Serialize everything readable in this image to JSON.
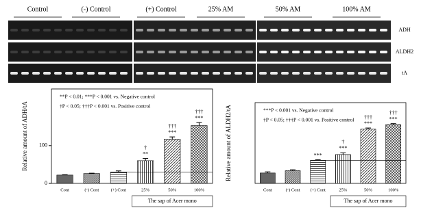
{
  "gel": {
    "lanes": [
      "Control",
      "(-) Control",
      "(+) Control",
      "25% AM",
      "50% AM",
      "100% AM"
    ],
    "rows": [
      "ADH",
      "ALDH2",
      "tA"
    ]
  },
  "chart_data": [
    {
      "type": "bar",
      "ylabel": "Relative amount of ADH/tA",
      "xlabel": "The sap of Acer mono",
      "notes": [
        "**P < 0.01; ***P < 0.001 vs. Negative control",
        "†P < 0.05; †††P < 0.001 vs. Positive control"
      ],
      "categories": [
        "Cont",
        "(-) Cont",
        "(+) Cont",
        "25%",
        "50%",
        "100%"
      ],
      "values": [
        22,
        26,
        30,
        60,
        117,
        153
      ],
      "errors": [
        1,
        1,
        3,
        6,
        6,
        8
      ],
      "stars": [
        null,
        null,
        null,
        "**",
        "***",
        "***"
      ],
      "daggers": [
        null,
        null,
        null,
        "†",
        "†††",
        "†††"
      ],
      "reference_line": 30,
      "ylim": [
        0,
        250
      ],
      "yticks": [
        0,
        100
      ]
    },
    {
      "type": "bar",
      "ylabel": "Relative amount of ALDH2/tA",
      "xlabel": "The sap of Acer mono",
      "notes": [
        "***P < 0.001 vs. Negative control",
        "†P < 0.05; †††P < 0.001 vs. Positive control"
      ],
      "categories": [
        "Cont",
        "(-) Cont",
        "(+) Cont",
        "25%",
        "50%",
        "100%"
      ],
      "values": [
        9,
        11,
        20,
        25,
        47,
        51
      ],
      "errors": [
        1,
        0.8,
        0.5,
        1.5,
        1,
        0.8
      ],
      "stars": [
        null,
        null,
        "***",
        "***",
        "***",
        "***"
      ],
      "daggers": [
        null,
        null,
        null,
        "†",
        "†††",
        "†††"
      ],
      "reference_line": 20,
      "ylim": [
        0,
        70
      ]
    }
  ]
}
